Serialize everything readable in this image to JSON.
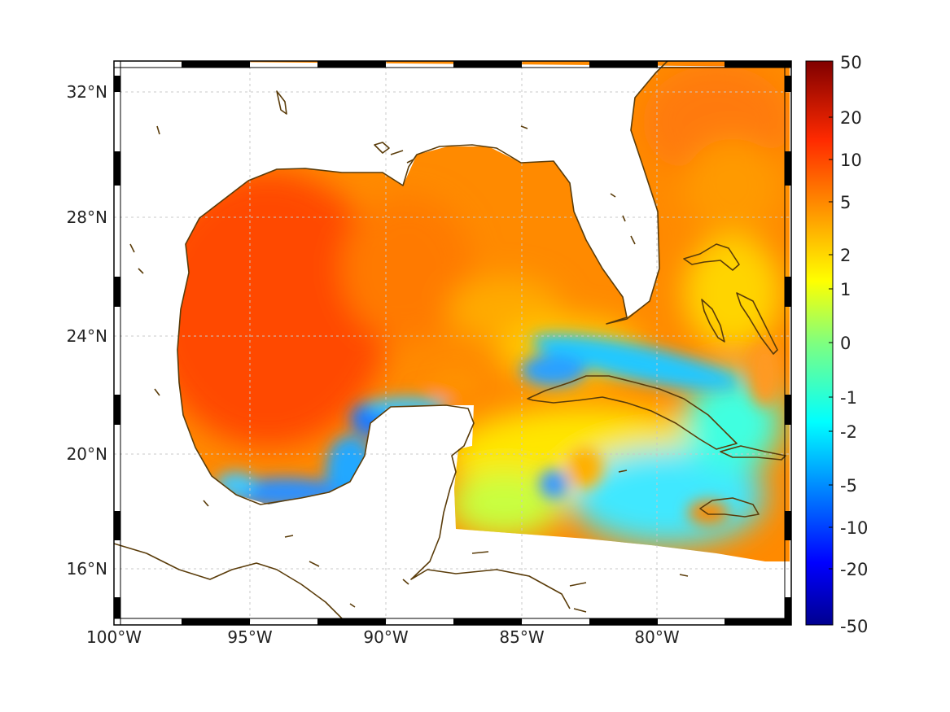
{
  "map": {
    "lat_ticks": [
      "32°N",
      "28°N",
      "24°N",
      "20°N",
      "16°N"
    ],
    "lon_ticks": [
      "100°W",
      "95°W",
      "90°W",
      "85°W",
      "80°W"
    ],
    "grid": true,
    "coastline_color": "#5a3c0a"
  },
  "colorbar": {
    "labels": [
      "50",
      "20",
      "10",
      "5",
      "2",
      "1",
      "0",
      "-1",
      "-2",
      "-5",
      "-10",
      "-20",
      "-50"
    ],
    "colormap": "jet",
    "placement": "right"
  }
}
